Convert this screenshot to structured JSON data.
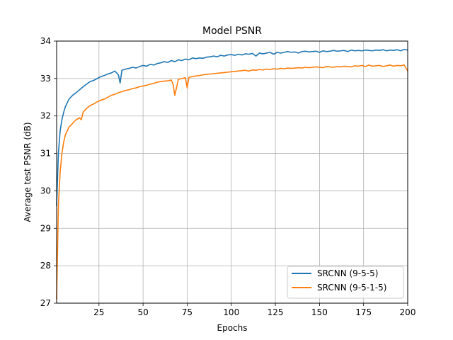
{
  "chart_data": {
    "type": "line",
    "title": "Model PSNR",
    "xlabel": "Epochs",
    "ylabel": "Average test PSNR (dB)",
    "xlim": [
      1,
      200
    ],
    "ylim": [
      27,
      34
    ],
    "xticks": [
      25,
      50,
      75,
      100,
      125,
      150,
      175,
      200
    ],
    "yticks": [
      27,
      28,
      29,
      30,
      31,
      32,
      33,
      34
    ],
    "grid": true,
    "legend_position": "bottom-right",
    "series": [
      {
        "name": "SRCNN (9-5-5)",
        "color": "#1f77b4",
        "x": [
          1,
          2,
          3,
          4,
          5,
          6,
          7,
          8,
          9,
          10,
          12,
          14,
          16,
          18,
          20,
          22,
          24,
          26,
          28,
          30,
          32,
          34,
          36,
          37,
          38,
          40,
          42,
          44,
          46,
          48,
          50,
          52,
          54,
          56,
          58,
          60,
          62,
          64,
          66,
          68,
          70,
          72,
          74,
          76,
          78,
          80,
          82,
          84,
          86,
          88,
          90,
          92,
          94,
          96,
          98,
          100,
          102,
          104,
          106,
          108,
          110,
          112,
          114,
          116,
          118,
          120,
          122,
          124,
          126,
          128,
          130,
          132,
          134,
          136,
          138,
          140,
          142,
          144,
          146,
          148,
          150,
          152,
          154,
          156,
          158,
          160,
          162,
          164,
          166,
          168,
          170,
          172,
          174,
          176,
          178,
          180,
          182,
          184,
          186,
          188,
          190,
          192,
          194,
          196,
          198,
          200
        ],
        "values": [
          29.6,
          31.0,
          31.6,
          31.9,
          32.1,
          32.25,
          32.35,
          32.45,
          32.5,
          32.55,
          32.62,
          32.7,
          32.78,
          32.85,
          32.92,
          32.95,
          33.0,
          33.05,
          33.08,
          33.12,
          33.15,
          33.2,
          33.1,
          32.88,
          33.22,
          33.25,
          33.27,
          33.3,
          33.28,
          33.32,
          33.35,
          33.33,
          33.38,
          33.36,
          33.4,
          33.42,
          33.45,
          33.43,
          33.48,
          33.45,
          33.5,
          33.48,
          33.52,
          33.5,
          33.55,
          33.53,
          33.55,
          33.54,
          33.57,
          33.58,
          33.6,
          33.58,
          33.62,
          33.6,
          33.63,
          33.64,
          33.62,
          33.65,
          33.63,
          33.66,
          33.65,
          33.67,
          33.6,
          33.68,
          33.66,
          33.68,
          33.7,
          33.65,
          33.7,
          33.68,
          33.7,
          33.72,
          33.7,
          33.71,
          33.68,
          33.72,
          33.73,
          33.71,
          33.72,
          33.73,
          33.7,
          33.74,
          33.72,
          33.73,
          33.75,
          33.73,
          33.74,
          33.75,
          33.72,
          33.76,
          33.74,
          33.75,
          33.74,
          33.76,
          33.75,
          33.74,
          33.76,
          33.75,
          33.77,
          33.74,
          33.76,
          33.75,
          33.77,
          33.74,
          33.78,
          33.76
        ]
      },
      {
        "name": "SRCNN (9-5-1-5)",
        "color": "#ff7f0e",
        "x": [
          1,
          2,
          3,
          4,
          5,
          6,
          7,
          8,
          9,
          10,
          12,
          14,
          15,
          16,
          18,
          20,
          22,
          24,
          26,
          28,
          30,
          32,
          34,
          36,
          38,
          40,
          42,
          44,
          46,
          48,
          50,
          52,
          54,
          56,
          58,
          60,
          62,
          64,
          66,
          67,
          68,
          70,
          72,
          74,
          75,
          76,
          78,
          80,
          82,
          84,
          86,
          88,
          90,
          92,
          94,
          96,
          98,
          100,
          102,
          104,
          106,
          108,
          110,
          112,
          114,
          116,
          118,
          120,
          122,
          124,
          126,
          128,
          130,
          132,
          134,
          136,
          138,
          140,
          142,
          144,
          146,
          148,
          150,
          152,
          154,
          156,
          158,
          160,
          162,
          164,
          166,
          168,
          170,
          172,
          174,
          176,
          178,
          180,
          182,
          184,
          186,
          188,
          190,
          192,
          194,
          196,
          198,
          200
        ],
        "values": [
          27.1,
          29.6,
          30.5,
          31.0,
          31.3,
          31.5,
          31.6,
          31.7,
          31.75,
          31.8,
          31.9,
          31.95,
          31.9,
          32.1,
          32.2,
          32.28,
          32.32,
          32.38,
          32.42,
          32.45,
          32.5,
          32.55,
          32.58,
          32.62,
          32.65,
          32.68,
          32.7,
          32.73,
          32.75,
          32.78,
          32.8,
          32.82,
          32.85,
          32.87,
          32.9,
          32.92,
          32.93,
          32.94,
          32.96,
          32.85,
          32.55,
          32.98,
          33.0,
          33.02,
          32.75,
          33.03,
          33.05,
          33.07,
          33.08,
          33.1,
          33.11,
          33.12,
          33.13,
          33.14,
          33.15,
          33.16,
          33.17,
          33.18,
          33.19,
          33.2,
          33.21,
          33.22,
          33.2,
          33.23,
          33.22,
          33.24,
          33.23,
          33.25,
          33.24,
          33.26,
          33.25,
          33.27,
          33.26,
          33.28,
          33.27,
          33.28,
          33.29,
          33.28,
          33.3,
          33.29,
          33.3,
          33.31,
          33.3,
          33.29,
          33.32,
          33.31,
          33.3,
          33.32,
          33.31,
          33.33,
          33.32,
          33.31,
          33.34,
          33.33,
          33.35,
          33.32,
          33.36,
          33.33,
          33.34,
          33.35,
          33.32,
          33.34,
          33.36,
          33.33,
          33.35,
          33.34,
          33.36,
          33.2
        ]
      }
    ]
  }
}
